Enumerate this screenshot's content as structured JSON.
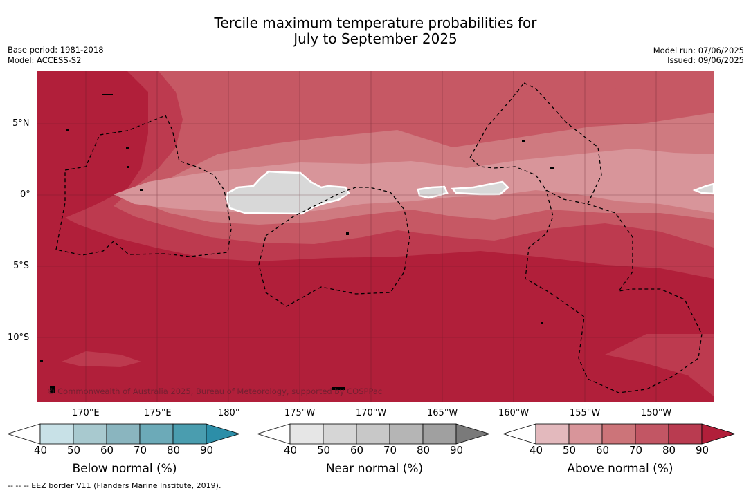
{
  "header": {
    "title_line1": "Tercile maximum temperature probabilities for",
    "title_line2": "July to September 2025",
    "base_period": "Base period: 1981-2018",
    "model": "Model: ACCESS-S2",
    "model_run": "Model run: 07/06/2025",
    "issued": "Issued: 09/06/2025"
  },
  "map": {
    "lat_labels": [
      "5°N",
      "0°",
      "5°S",
      "10°S"
    ],
    "lon_labels": [
      "170°E",
      "175°E",
      "180°",
      "175°W",
      "170°W",
      "165°W",
      "160°W",
      "155°W",
      "150°W"
    ],
    "copyright": "© Commonwealth of Australia 2025, Bureau of Meteorology, supported by COSPPac",
    "colors": {
      "above_90": "#b11f3a",
      "above_80": "#bd3a4f",
      "above_70": "#c65864",
      "above_60": "#cf7a80",
      "above_50": "#d8959a",
      "near_50": "#d8d8d8",
      "eez_line": "#000000"
    }
  },
  "colorbars": [
    {
      "title": "Below normal (%)",
      "ticks": [
        "40",
        "50",
        "60",
        "70",
        "80",
        "90"
      ],
      "colors": [
        "#ffffff",
        "#c8e1e7",
        "#a8c9cf",
        "#8ab5bf",
        "#6caab8",
        "#4a9daf",
        "#2c8ea8"
      ]
    },
    {
      "title": "Near normal (%)",
      "ticks": [
        "40",
        "50",
        "60",
        "70",
        "80",
        "90"
      ],
      "colors": [
        "#ffffff",
        "#e6e6e6",
        "#d6d6d6",
        "#c8c8c8",
        "#b5b5b5",
        "#a0a0a0",
        "#7a7a7a"
      ]
    },
    {
      "title": "Above normal (%)",
      "ticks": [
        "40",
        "50",
        "60",
        "70",
        "80",
        "90"
      ],
      "colors": [
        "#ffffff",
        "#e3b9bd",
        "#d8959a",
        "#cc7479",
        "#c25664",
        "#b93b50",
        "#b11f3a"
      ]
    }
  ],
  "footnote": "--  --  -- EEZ border V11 (Flanders Marine Institute, 2019)."
}
